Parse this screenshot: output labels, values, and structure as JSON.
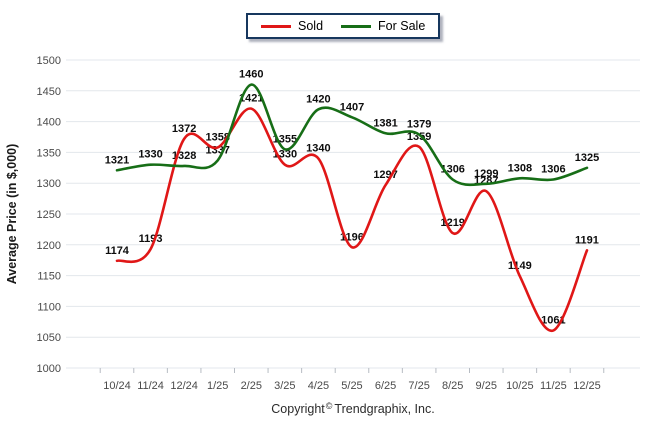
{
  "legend": {
    "items": [
      {
        "id": "sold",
        "label": "Sold",
        "color": "#e01717"
      },
      {
        "id": "for-sale",
        "label": "For Sale",
        "color": "#176e17"
      }
    ]
  },
  "footer": {
    "copyright_pre": "Copyright",
    "copyright_symbol": "©",
    "copyright_post": "Trendgraphix, Inc."
  },
  "chart_data": {
    "type": "line",
    "title": "",
    "categories": [
      "10/24",
      "11/24",
      "12/24",
      "1/25",
      "2/25",
      "3/25",
      "4/25",
      "5/25",
      "6/25",
      "7/25",
      "8/25",
      "9/25",
      "10/25",
      "11/25",
      "12/25"
    ],
    "series": [
      {
        "name": "Sold",
        "color": "#e01717",
        "values": [
          1174,
          1193,
          1372,
          1358,
          1421,
          1330,
          1340,
          1196,
          1297,
          1359,
          1219,
          1287,
          1149,
          1061,
          1191
        ]
      },
      {
        "name": "For Sale",
        "color": "#176e17",
        "values": [
          1321,
          1330,
          1328,
          1337,
          1460,
          1355,
          1420,
          1407,
          1381,
          1379,
          1306,
          1299,
          1308,
          1306,
          1325
        ]
      }
    ],
    "xlabel": "",
    "ylabel": "Average Price (in $,000)",
    "ylim": [
      1000,
      1500
    ],
    "ytick_step": 50,
    "grid": true,
    "legend_position": "top-center",
    "data_labels": true,
    "smooth": true,
    "colors": {
      "grid": "#e3e7ec",
      "axis_tick": "#b7bcc3",
      "tick_text": "#4a4a4a",
      "label_text": "#0d0d0d",
      "axis_title": "#1a1a1a"
    }
  }
}
